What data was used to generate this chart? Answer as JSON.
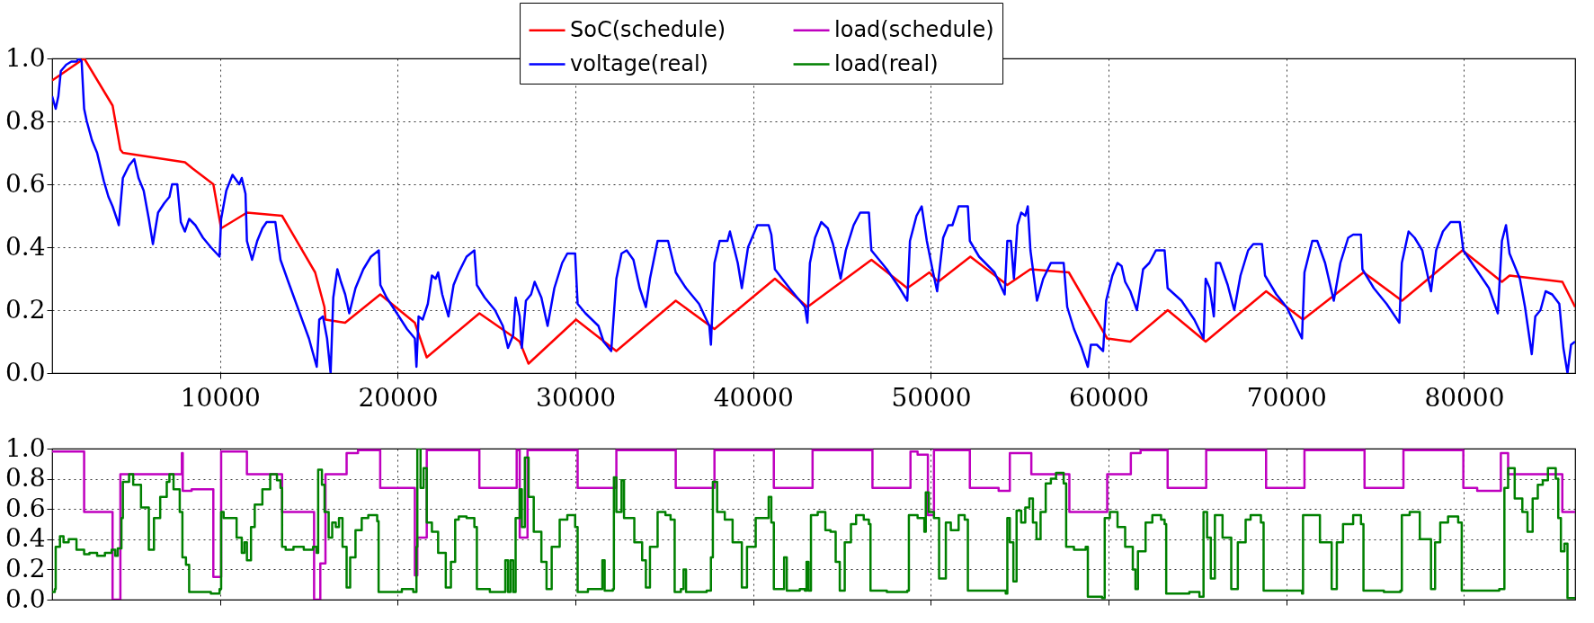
{
  "chart_data": [
    {
      "type": "line",
      "xlim": [
        550,
        86250
      ],
      "xticks": [
        10000,
        20000,
        30000,
        40000,
        50000,
        60000,
        70000,
        80000
      ],
      "ylim": [
        0,
        1
      ],
      "yticks": [
        {
          "value": 0,
          "label": "0.0"
        },
        {
          "value": 0.2,
          "label": "0.2"
        },
        {
          "value": 0.4,
          "label": "0.4"
        },
        {
          "value": 0.6,
          "label": "0.6"
        },
        {
          "value": 0.8,
          "label": "0.8"
        },
        {
          "value": 1,
          "label": "1.0"
        }
      ],
      "grid": true,
      "legend": "top",
      "series": [
        {
          "name": "SoC(schedule)",
          "color": "#ff0000",
          "x": [
            552,
            2355,
            3953,
            4390,
            4535,
            8023,
            8459,
            9622,
            10058,
            11512,
            13488,
            15349,
            15872,
            15930,
            17035,
            19012,
            20959,
            21628,
            24593,
            26628,
            26860,
            27355,
            30029,
            32297,
            35640,
            37820,
            41221,
            43049,
            46654,
            48673,
            49913,
            50404,
            52221,
            54298,
            55596,
            57759,
            59922,
            61220,
            63325,
            65460,
            68863,
            70940,
            74344,
            76507,
            79910,
            82131,
            82564,
            85535,
            86250
          ],
          "values": [
            0.93,
            1.0,
            0.85,
            0.71,
            0.7,
            0.67,
            0.65,
            0.6,
            0.46,
            0.51,
            0.5,
            0.32,
            0.21,
            0.17,
            0.16,
            0.25,
            0.16,
            0.05,
            0.19,
            0.11,
            0.1,
            0.03,
            0.17,
            0.07,
            0.23,
            0.14,
            0.3,
            0.21,
            0.36,
            0.27,
            0.32,
            0.29,
            0.37,
            0.28,
            0.33,
            0.32,
            0.11,
            0.1,
            0.2,
            0.1,
            0.26,
            0.17,
            0.32,
            0.23,
            0.39,
            0.29,
            0.31,
            0.29,
            0.21
          ]
        },
        {
          "name": "voltage(real)",
          "color": "#0000ff",
          "x": [
            550,
            750,
            900,
            1040,
            1340,
            1630,
            1920,
            2060,
            2210,
            2350,
            2500,
            2790,
            3080,
            3460,
            3720,
            3950,
            4190,
            4300,
            4530,
            4880,
            5170,
            5410,
            5700,
            5990,
            6220,
            6510,
            6860,
            7150,
            7300,
            7590,
            7790,
            8020,
            8260,
            8610,
            9040,
            9480,
            9970,
            10060,
            10350,
            10700,
            11080,
            11220,
            11430,
            11510,
            11800,
            12090,
            12380,
            12620,
            13110,
            13400,
            13840,
            14420,
            15000,
            15440,
            15580,
            15790,
            16020,
            16220,
            16370,
            16600,
            16800,
            17040,
            17270,
            17620,
            18060,
            18490,
            18930,
            19020,
            19370,
            19950,
            20520,
            20960,
            21050,
            21170,
            21400,
            21690,
            21920,
            22130,
            22270,
            22500,
            22850,
            23140,
            23430,
            23870,
            24310,
            24450,
            24890,
            25470,
            25910,
            26200,
            26490,
            26630,
            26860,
            26980,
            27210,
            27500,
            27700,
            28080,
            28430,
            28810,
            29250,
            29540,
            29980,
            30120,
            30560,
            31290,
            31580,
            32010,
            32300,
            32590,
            32880,
            33260,
            33610,
            33960,
            34190,
            34620,
            35210,
            35640,
            36220,
            36950,
            37530,
            37620,
            37820,
            38110,
            38550,
            38690,
            39130,
            39360,
            39710,
            40230,
            40870,
            41020,
            41220,
            42040,
            42330,
            42910,
            43050,
            43190,
            43480,
            43830,
            44200,
            44490,
            44920,
            45210,
            45650,
            46020,
            46510,
            46650,
            47520,
            48240,
            48670,
            48820,
            49190,
            49480,
            49770,
            50120,
            50350,
            50690,
            50980,
            51210,
            51560,
            52080,
            52190,
            52710,
            53580,
            54150,
            54300,
            54500,
            54670,
            54870,
            55080,
            55310,
            55450,
            55600,
            55970,
            56320,
            56750,
            57040,
            57470,
            57670,
            58050,
            58480,
            58830,
            59000,
            59340,
            59690,
            59860,
            60210,
            60500,
            60730,
            60930,
            61220,
            61590,
            61940,
            62290,
            62660,
            63150,
            63320,
            64100,
            64820,
            65340,
            65460,
            65690,
            65920,
            66040,
            66270,
            66700,
            67070,
            67420,
            67850,
            68140,
            68630,
            68800,
            69440,
            70010,
            70450,
            70880,
            71020,
            71460,
            71740,
            72180,
            72670,
            73040,
            73480,
            73760,
            74200,
            74280,
            74920,
            75640,
            76360,
            76500,
            76880,
            77220,
            77650,
            78140,
            78430,
            78810,
            79240,
            79760,
            79960,
            80680,
            81400,
            81900,
            82130,
            82360,
            82560,
            83140,
            83430,
            83810,
            84010,
            84300,
            84590,
            84960,
            85360,
            85590,
            85820,
            86020,
            86250
          ],
          "values": [
            0.88,
            0.84,
            0.88,
            0.96,
            0.98,
            0.99,
            0.99,
            1.0,
            0.99,
            0.84,
            0.8,
            0.74,
            0.7,
            0.61,
            0.56,
            0.53,
            0.49,
            0.47,
            0.62,
            0.66,
            0.68,
            0.62,
            0.58,
            0.49,
            0.41,
            0.51,
            0.54,
            0.56,
            0.6,
            0.6,
            0.48,
            0.45,
            0.49,
            0.47,
            0.43,
            0.4,
            0.37,
            0.49,
            0.58,
            0.63,
            0.6,
            0.62,
            0.57,
            0.42,
            0.36,
            0.42,
            0.46,
            0.48,
            0.48,
            0.36,
            0.29,
            0.2,
            0.11,
            0.02,
            0.17,
            0.18,
            0.11,
            0.0,
            0.24,
            0.33,
            0.29,
            0.25,
            0.19,
            0.27,
            0.33,
            0.37,
            0.39,
            0.28,
            0.24,
            0.19,
            0.14,
            0.11,
            0.02,
            0.18,
            0.17,
            0.22,
            0.31,
            0.3,
            0.32,
            0.25,
            0.18,
            0.28,
            0.32,
            0.37,
            0.39,
            0.28,
            0.24,
            0.2,
            0.15,
            0.08,
            0.12,
            0.24,
            0.18,
            0.08,
            0.23,
            0.25,
            0.29,
            0.24,
            0.15,
            0.27,
            0.35,
            0.38,
            0.38,
            0.22,
            0.19,
            0.15,
            0.1,
            0.07,
            0.3,
            0.38,
            0.39,
            0.36,
            0.27,
            0.21,
            0.3,
            0.42,
            0.42,
            0.32,
            0.27,
            0.22,
            0.15,
            0.09,
            0.35,
            0.42,
            0.42,
            0.45,
            0.35,
            0.27,
            0.4,
            0.47,
            0.47,
            0.44,
            0.33,
            0.27,
            0.25,
            0.21,
            0.16,
            0.35,
            0.43,
            0.48,
            0.46,
            0.41,
            0.3,
            0.39,
            0.47,
            0.51,
            0.51,
            0.39,
            0.33,
            0.27,
            0.23,
            0.42,
            0.5,
            0.53,
            0.42,
            0.32,
            0.26,
            0.43,
            0.47,
            0.47,
            0.53,
            0.53,
            0.42,
            0.37,
            0.32,
            0.25,
            0.42,
            0.42,
            0.3,
            0.47,
            0.51,
            0.5,
            0.53,
            0.39,
            0.23,
            0.3,
            0.35,
            0.35,
            0.35,
            0.21,
            0.14,
            0.08,
            0.02,
            0.09,
            0.09,
            0.07,
            0.23,
            0.31,
            0.35,
            0.34,
            0.29,
            0.26,
            0.2,
            0.33,
            0.35,
            0.39,
            0.39,
            0.27,
            0.23,
            0.17,
            0.11,
            0.3,
            0.27,
            0.18,
            0.35,
            0.35,
            0.28,
            0.2,
            0.31,
            0.39,
            0.41,
            0.41,
            0.31,
            0.25,
            0.21,
            0.16,
            0.11,
            0.32,
            0.42,
            0.42,
            0.35,
            0.23,
            0.35,
            0.43,
            0.44,
            0.44,
            0.33,
            0.27,
            0.22,
            0.16,
            0.35,
            0.45,
            0.43,
            0.39,
            0.26,
            0.39,
            0.45,
            0.48,
            0.48,
            0.39,
            0.33,
            0.27,
            0.19,
            0.42,
            0.47,
            0.38,
            0.3,
            0.21,
            0.06,
            0.18,
            0.2,
            0.26,
            0.25,
            0.22,
            0.08,
            0.0,
            0.09,
            0.1
          ]
        }
      ]
    },
    {
      "type": "line",
      "xlim": [
        550,
        86250
      ],
      "xticks": [
        10000,
        20000,
        30000,
        40000,
        50000,
        60000,
        70000,
        80000
      ],
      "ylim": [
        0,
        1
      ],
      "yticks": [
        {
          "value": 0,
          "label": "0.0"
        },
        {
          "value": 0.2,
          "label": "0.2"
        },
        {
          "value": 0.4,
          "label": "0.4"
        },
        {
          "value": 0.6,
          "label": "0.6"
        },
        {
          "value": 0.8,
          "label": "0.8"
        },
        {
          "value": 1,
          "label": "1.0"
        }
      ],
      "grid": true,
      "tick_labels": "y",
      "legend": "top",
      "series": [
        {
          "name": "load(schedule)",
          "color": "#bf00bf",
          "type": "step",
          "x": [
            550,
            2350,
            3950,
            4390,
            7850,
            7900,
            8400,
            9620,
            10060,
            11510,
            13490,
            15290,
            15640,
            15930,
            17120,
            17760,
            19010,
            20960,
            21100,
            21630,
            24590,
            26690,
            26860,
            27300,
            30120,
            32300,
            35640,
            37820,
            41160,
            43340,
            46710,
            48850,
            49250,
            49830,
            50170,
            52190,
            53810,
            54440,
            55650,
            57790,
            59920,
            61250,
            61800,
            63320,
            65490,
            68860,
            71020,
            74400,
            76590,
            79960,
            80740,
            82070,
            82480,
            85530,
            86250
          ],
          "values": [
            0.98,
            0.58,
            0.0,
            0.83,
            0.97,
            0.72,
            0.73,
            0.15,
            0.98,
            0.83,
            0.58,
            0.0,
            0.24,
            0.83,
            0.97,
            0.99,
            0.74,
            0.16,
            0.41,
            0.99,
            0.74,
            0.99,
            0.41,
            0.99,
            0.74,
            0.99,
            0.74,
            0.99,
            0.74,
            0.99,
            0.74,
            0.98,
            0.96,
            0.56,
            0.99,
            0.74,
            0.72,
            0.97,
            0.83,
            0.58,
            0.83,
            0.97,
            0.99,
            0.74,
            0.99,
            0.74,
            0.99,
            0.74,
            0.99,
            0.74,
            0.72,
            0.97,
            0.83,
            0.58,
            0.58
          ]
        },
        {
          "name": "load(real)",
          "color": "#008000",
          "type": "step",
          "x": [
            550,
            700,
            750,
            990,
            1190,
            1480,
            1920,
            2350,
            2650,
            3080,
            3520,
            3900,
            4100,
            4240,
            4450,
            4530,
            4880,
            5110,
            5550,
            5990,
            6280,
            6630,
            7000,
            7150,
            7380,
            7730,
            7880,
            8080,
            8260,
            8900,
            9480,
            9970,
            10060,
            10200,
            10640,
            10930,
            11220,
            11370,
            11510,
            11740,
            11950,
            12380,
            12820,
            13200,
            13400,
            13490,
            13690,
            14130,
            14710,
            15230,
            15440,
            15520,
            15730,
            15880,
            16110,
            16310,
            16510,
            16690,
            16890,
            17120,
            17320,
            17620,
            17970,
            18340,
            18840,
            18920,
            19650,
            20230,
            20870,
            21050,
            21100,
            21280,
            21450,
            21630,
            21920,
            22270,
            22700,
            22990,
            23230,
            23430,
            23870,
            24310,
            24450,
            25180,
            25910,
            26050,
            26200,
            26340,
            26490,
            26630,
            26860,
            26980,
            27150,
            27360,
            27650,
            28080,
            28370,
            28660,
            29110,
            29540,
            29980,
            30120,
            30700,
            31420,
            31510,
            31640,
            32100,
            32160,
            32300,
            32590,
            32730,
            33310,
            33750,
            33960,
            34190,
            34620,
            35060,
            35350,
            35580,
            35930,
            36080,
            36220,
            37380,
            37620,
            37730,
            37970,
            38400,
            38840,
            39360,
            39650,
            40140,
            40580,
            40870,
            41020,
            41160,
            41740,
            41890,
            42620,
            42910,
            43000,
            43110,
            43250,
            43630,
            44060,
            44350,
            44640,
            44870,
            45150,
            45500,
            45790,
            46220,
            46510,
            46600,
            47520,
            48670,
            48760,
            49250,
            49540,
            49630,
            49710,
            49880,
            50170,
            50460,
            50840,
            51120,
            51560,
            51900,
            52080,
            53000,
            54210,
            54300,
            54440,
            54640,
            54820,
            55080,
            55310,
            55540,
            55740,
            55940,
            56170,
            56460,
            56750,
            57040,
            57470,
            57610,
            58050,
            58710,
            58830,
            59630,
            59780,
            60070,
            60500,
            60930,
            61360,
            61510,
            61650,
            62080,
            62460,
            62950,
            63150,
            63240,
            64540,
            65110,
            65340,
            65540,
            65750,
            65980,
            66410,
            66900,
            67270,
            67710,
            67990,
            68570,
            68720,
            69870,
            70880,
            70940,
            71400,
            71890,
            72550,
            72840,
            73190,
            73760,
            74200,
            74340,
            75490,
            76420,
            76500,
            76940,
            77510,
            78140,
            78370,
            78660,
            79100,
            79670,
            79870,
            80970,
            81980,
            82270,
            82480,
            82850,
            83280,
            83570,
            83860,
            84150,
            84430,
            84720,
            85160,
            85300,
            85450,
            85650,
            85820,
            86250
          ],
          "values": [
            0.05,
            0.07,
            0.35,
            0.42,
            0.38,
            0.4,
            0.33,
            0.3,
            0.31,
            0.29,
            0.31,
            0.33,
            0.29,
            0.34,
            0.54,
            0.78,
            0.83,
            0.76,
            0.61,
            0.33,
            0.54,
            0.68,
            0.78,
            0.83,
            0.73,
            0.58,
            0.28,
            0.23,
            0.05,
            0.05,
            0.04,
            0.07,
            0.58,
            0.54,
            0.54,
            0.41,
            0.31,
            0.38,
            0.26,
            0.48,
            0.63,
            0.73,
            0.83,
            0.79,
            0.74,
            0.35,
            0.33,
            0.35,
            0.33,
            0.35,
            0.31,
            0.86,
            0.76,
            0.58,
            0.41,
            0.51,
            0.48,
            0.54,
            0.35,
            0.08,
            0.28,
            0.46,
            0.54,
            0.56,
            0.52,
            0.05,
            0.05,
            0.07,
            0.05,
            0.35,
            1.0,
            0.74,
            0.87,
            0.51,
            0.45,
            0.31,
            0.08,
            0.25,
            0.53,
            0.55,
            0.54,
            0.48,
            0.07,
            0.05,
            0.05,
            0.26,
            0.05,
            0.26,
            0.05,
            0.54,
            0.73,
            0.48,
            0.94,
            0.68,
            0.45,
            0.25,
            0.07,
            0.35,
            0.53,
            0.56,
            0.48,
            0.05,
            0.07,
            0.07,
            0.26,
            0.06,
            0.07,
            0.81,
            0.58,
            0.79,
            0.54,
            0.38,
            0.26,
            0.08,
            0.35,
            0.58,
            0.56,
            0.53,
            0.05,
            0.07,
            0.2,
            0.05,
            0.06,
            0.28,
            0.78,
            0.58,
            0.53,
            0.38,
            0.08,
            0.35,
            0.54,
            0.54,
            0.68,
            0.51,
            0.07,
            0.28,
            0.06,
            0.07,
            0.06,
            0.25,
            0.06,
            0.56,
            0.58,
            0.46,
            0.45,
            0.25,
            0.06,
            0.38,
            0.5,
            0.56,
            0.53,
            0.5,
            0.06,
            0.05,
            0.06,
            0.56,
            0.54,
            0.54,
            0.45,
            0.71,
            0.58,
            0.54,
            0.14,
            0.51,
            0.46,
            0.56,
            0.53,
            0.06,
            0.06,
            0.04,
            0.54,
            0.38,
            0.12,
            0.59,
            0.51,
            0.61,
            0.67,
            0.51,
            0.4,
            0.58,
            0.77,
            0.8,
            0.84,
            0.77,
            0.35,
            0.33,
            0.35,
            0.02,
            0.01,
            0.54,
            0.58,
            0.48,
            0.35,
            0.2,
            0.07,
            0.32,
            0.51,
            0.56,
            0.53,
            0.5,
            0.04,
            0.05,
            0.02,
            0.58,
            0.41,
            0.14,
            0.56,
            0.41,
            0.07,
            0.38,
            0.53,
            0.56,
            0.51,
            0.06,
            0.06,
            0.04,
            0.56,
            0.56,
            0.38,
            0.07,
            0.38,
            0.5,
            0.56,
            0.5,
            0.06,
            0.05,
            0.06,
            0.56,
            0.58,
            0.4,
            0.07,
            0.38,
            0.51,
            0.55,
            0.51,
            0.06,
            0.06,
            0.07,
            0.74,
            0.87,
            0.67,
            0.58,
            0.45,
            0.67,
            0.76,
            0.79,
            0.87,
            0.8,
            0.54,
            0.32,
            0.37,
            0.01,
            0.01
          ]
        }
      ]
    }
  ]
}
